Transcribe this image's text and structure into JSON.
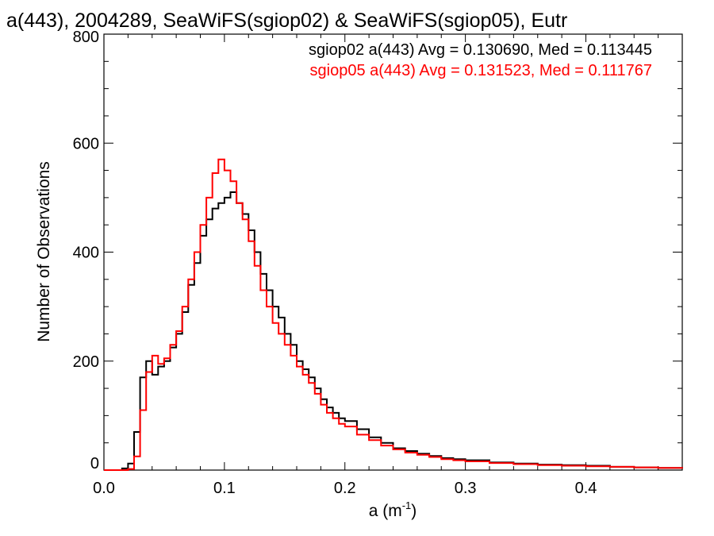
{
  "chart_data": {
    "type": "line",
    "title": "a(443), 2004289, SeaWiFS(sgiop02) & SeaWiFS(sgiop05), Eutr",
    "xlabel": "a (m",
    "xlabel_sup": "-1",
    "xlabel_close": ")",
    "ylabel": "Number of Observations",
    "xlim": [
      0.0,
      0.48
    ],
    "ylim": [
      0,
      800
    ],
    "x_ticks": [
      0.0,
      0.1,
      0.2,
      0.3,
      0.4
    ],
    "x_tick_labels": [
      "0.0",
      "0.1",
      "0.2",
      "0.3",
      "0.4"
    ],
    "y_ticks": [
      0,
      200,
      400,
      600,
      800
    ],
    "y_tick_labels": [
      "0",
      "200",
      "400",
      "600",
      "800"
    ],
    "grid": false,
    "legend_position": "top-right",
    "legend": [
      {
        "text": "sgiop02 a(443) Avg = 0.130690, Med = 0.113445",
        "color": "#000000"
      },
      {
        "text": "sgiop05 a(443) Avg = 0.131523, Med = 0.111767",
        "color": "#ff0000"
      }
    ],
    "series": [
      {
        "color": "#000000",
        "x": [
          0.0,
          0.01,
          0.015,
          0.02,
          0.025,
          0.03,
          0.035,
          0.04,
          0.045,
          0.05,
          0.055,
          0.06,
          0.065,
          0.07,
          0.075,
          0.08,
          0.085,
          0.09,
          0.095,
          0.1,
          0.105,
          0.11,
          0.115,
          0.12,
          0.125,
          0.13,
          0.135,
          0.14,
          0.145,
          0.15,
          0.155,
          0.16,
          0.165,
          0.17,
          0.175,
          0.18,
          0.185,
          0.19,
          0.195,
          0.2,
          0.21,
          0.22,
          0.23,
          0.24,
          0.25,
          0.26,
          0.27,
          0.28,
          0.29,
          0.3,
          0.32,
          0.34,
          0.36,
          0.38,
          0.4,
          0.42,
          0.44,
          0.46,
          0.48
        ],
        "y": [
          0,
          0,
          3,
          12,
          70,
          170,
          200,
          175,
          190,
          200,
          225,
          250,
          290,
          340,
          380,
          430,
          460,
          480,
          490,
          500,
          510,
          490,
          470,
          440,
          400,
          360,
          330,
          300,
          280,
          250,
          230,
          200,
          185,
          170,
          150,
          130,
          115,
          105,
          95,
          90,
          75,
          60,
          50,
          40,
          35,
          30,
          26,
          22,
          20,
          18,
          14,
          12,
          10,
          9,
          8,
          6,
          5,
          4,
          3
        ]
      },
      {
        "color": "#ff0000",
        "x": [
          0.0,
          0.01,
          0.015,
          0.02,
          0.025,
          0.03,
          0.035,
          0.04,
          0.045,
          0.05,
          0.055,
          0.06,
          0.065,
          0.07,
          0.075,
          0.08,
          0.085,
          0.09,
          0.095,
          0.1,
          0.105,
          0.11,
          0.115,
          0.12,
          0.125,
          0.13,
          0.135,
          0.14,
          0.145,
          0.15,
          0.155,
          0.16,
          0.165,
          0.17,
          0.175,
          0.18,
          0.185,
          0.19,
          0.195,
          0.2,
          0.21,
          0.22,
          0.23,
          0.24,
          0.25,
          0.26,
          0.27,
          0.28,
          0.29,
          0.3,
          0.32,
          0.34,
          0.36,
          0.38,
          0.4,
          0.42,
          0.44,
          0.46,
          0.48
        ],
        "y": [
          0,
          0,
          0,
          2,
          25,
          110,
          180,
          210,
          195,
          205,
          230,
          255,
          300,
          350,
          400,
          450,
          500,
          545,
          570,
          550,
          530,
          490,
          460,
          420,
          375,
          330,
          300,
          270,
          250,
          230,
          210,
          190,
          175,
          160,
          140,
          120,
          105,
          95,
          85,
          80,
          65,
          55,
          45,
          38,
          32,
          28,
          24,
          20,
          18,
          16,
          13,
          11,
          9,
          8,
          7,
          6,
          5,
          4,
          3
        ]
      }
    ]
  }
}
